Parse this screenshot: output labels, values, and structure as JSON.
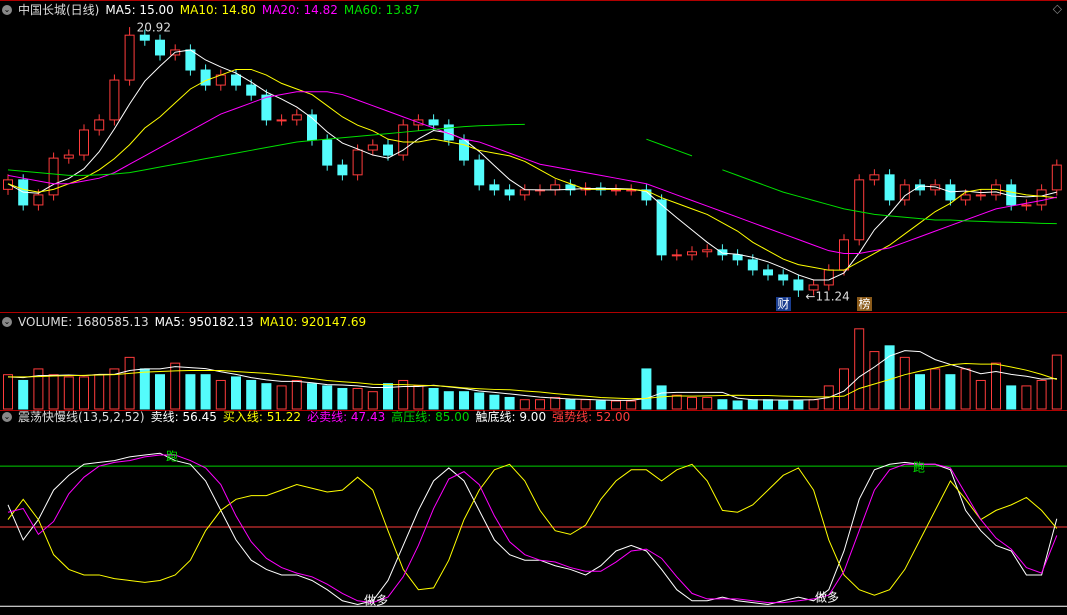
{
  "chart_data": [
    {
      "type": "candlestick",
      "title": "中国长城(日线)",
      "open": [
        15.1,
        15.44,
        14.54,
        14.9,
        16.22,
        16.33,
        17.23,
        17.59,
        19.02,
        20.63,
        20.45,
        19.92,
        20.1,
        19.38,
        18.84,
        19.2,
        18.84,
        18.48,
        17.59,
        17.59,
        17.77,
        16.87,
        15.97,
        15.62,
        16.51,
        16.69,
        16.33,
        17.41,
        17.59,
        17.41,
        16.87,
        16.15,
        15.26,
        15.08,
        14.9,
        15.08,
        15.08,
        15.26,
        15.08,
        15.15,
        15.08,
        15.08,
        15.08,
        14.72,
        12.75,
        12.75,
        12.86,
        12.93,
        12.75,
        12.57,
        12.21,
        12.03,
        11.85,
        11.49,
        11.67,
        12.21,
        13.29,
        15.44,
        15.62,
        14.72,
        15.26,
        15.08,
        15.26,
        14.72,
        14.9,
        14.9,
        15.26,
        14.54,
        14.54,
        15.08
      ],
      "high": [
        15.64,
        15.64,
        15.1,
        16.42,
        16.53,
        17.43,
        17.79,
        19.22,
        20.92,
        20.83,
        20.65,
        20.3,
        20.3,
        19.58,
        19.4,
        19.4,
        19.04,
        18.68,
        17.79,
        17.97,
        17.97,
        17.07,
        16.17,
        16.71,
        16.89,
        16.89,
        17.61,
        17.79,
        17.79,
        17.61,
        17.07,
        16.35,
        15.46,
        15.28,
        15.28,
        15.28,
        15.46,
        15.46,
        15.35,
        15.35,
        15.28,
        15.28,
        15.28,
        14.92,
        12.95,
        13.06,
        13.13,
        13.13,
        12.95,
        12.77,
        12.41,
        12.23,
        12.05,
        11.87,
        12.41,
        13.49,
        15.64,
        15.82,
        15.82,
        15.46,
        15.46,
        15.46,
        15.46,
        15.1,
        15.1,
        15.46,
        15.46,
        14.74,
        15.28,
        16.17
      ],
      "low": [
        14.9,
        14.34,
        14.34,
        14.7,
        16.02,
        16.13,
        17.03,
        17.39,
        18.82,
        20.25,
        19.72,
        19.72,
        19.18,
        18.64,
        18.64,
        18.64,
        18.28,
        17.39,
        17.39,
        17.39,
        16.67,
        15.77,
        15.42,
        15.42,
        16.31,
        16.13,
        16.13,
        17.21,
        17.21,
        16.67,
        15.95,
        15.06,
        14.88,
        14.7,
        14.7,
        14.88,
        14.88,
        14.88,
        14.88,
        14.88,
        14.88,
        14.88,
        14.52,
        12.55,
        12.55,
        12.55,
        12.66,
        12.55,
        12.37,
        12.01,
        11.83,
        11.65,
        11.24,
        11.29,
        11.47,
        12.01,
        13.09,
        15.24,
        14.52,
        14.52,
        14.88,
        14.88,
        14.52,
        14.52,
        14.7,
        14.7,
        14.34,
        14.34,
        14.34,
        14.88
      ],
      "close": [
        15.44,
        14.54,
        14.9,
        16.22,
        16.33,
        17.23,
        17.59,
        19.02,
        20.63,
        20.45,
        19.92,
        20.1,
        19.38,
        18.84,
        19.2,
        18.84,
        18.48,
        17.59,
        17.59,
        17.77,
        16.87,
        15.97,
        15.62,
        16.51,
        16.69,
        16.33,
        17.41,
        17.59,
        17.41,
        16.87,
        16.15,
        15.26,
        15.08,
        14.9,
        15.08,
        15.08,
        15.26,
        15.08,
        15.15,
        15.08,
        15.08,
        15.08,
        14.72,
        12.75,
        12.75,
        12.86,
        12.93,
        12.75,
        12.57,
        12.21,
        12.03,
        11.85,
        11.49,
        11.67,
        12.21,
        13.29,
        15.44,
        15.62,
        14.72,
        15.26,
        15.08,
        15.26,
        14.72,
        14.9,
        14.9,
        15.26,
        14.54,
        14.54,
        15.08,
        15.97
      ],
      "up_color": "#ff3c3c",
      "down_color": "#54fcfc",
      "ylim": [
        10.7,
        21.82
      ],
      "series": [
        {
          "label": "MA5: 15.00",
          "color": "#ffffff",
          "values": [
            15.3,
            15.0,
            14.96,
            15.28,
            15.49,
            15.84,
            16.45,
            17.27,
            18.16,
            18.98,
            19.52,
            20.02,
            20.1,
            19.74,
            19.49,
            19.27,
            18.95,
            18.59,
            18.34,
            18.05,
            17.66,
            17.16,
            16.76,
            16.55,
            16.33,
            16.22,
            16.51,
            16.91,
            17.21,
            17.12,
            16.89,
            16.46,
            15.95,
            15.45,
            15.09,
            15.08,
            15.08,
            15.1,
            15.13,
            15.13,
            15.13,
            15.11,
            15.02,
            14.54,
            14.08,
            13.64,
            13.2,
            12.81,
            12.77,
            12.66,
            12.5,
            12.28,
            12.03,
            11.85,
            11.85,
            12.1,
            12.82,
            13.65,
            14.22,
            14.87,
            15.22,
            15.19,
            15.01,
            15.04,
            14.98,
            15.01,
            14.86,
            14.83,
            14.86,
            15.0
          ]
        },
        {
          "label": "MA10: 14.80",
          "color": "#ffff00",
          "values": [
            15.3,
            15.1,
            15.0,
            15.1,
            15.3,
            15.5,
            15.8,
            16.2,
            16.7,
            17.3,
            17.7,
            18.2,
            18.7,
            19.0,
            19.2,
            19.4,
            19.4,
            19.2,
            18.9,
            18.7,
            18.5,
            18.1,
            17.7,
            17.4,
            17.2,
            16.9,
            16.8,
            16.8,
            16.9,
            16.8,
            16.7,
            16.5,
            16.4,
            16.3,
            16.1,
            15.8,
            15.5,
            15.3,
            15.1,
            15.1,
            15.1,
            15.1,
            15.05,
            14.8,
            14.6,
            14.4,
            14.2,
            13.9,
            13.6,
            13.2,
            12.9,
            12.6,
            12.4,
            12.3,
            12.2,
            12.2,
            12.5,
            12.8,
            13.1,
            13.5,
            13.9,
            14.3,
            14.6,
            15.0,
            15.1,
            15.1,
            15.0,
            14.9,
            14.85,
            14.8
          ]
        },
        {
          "label": "MA20: 14.82",
          "color": "#ff00ff",
          "values": [
            15.6,
            15.5,
            15.4,
            15.3,
            15.3,
            15.4,
            15.5,
            15.7,
            16.0,
            16.3,
            16.6,
            16.9,
            17.2,
            17.5,
            17.8,
            18.0,
            18.2,
            18.4,
            18.5,
            18.6,
            18.6,
            18.6,
            18.5,
            18.3,
            18.1,
            17.9,
            17.7,
            17.5,
            17.3,
            17.1,
            16.9,
            16.8,
            16.6,
            16.4,
            16.2,
            16.0,
            15.9,
            15.8,
            15.7,
            15.6,
            15.5,
            15.4,
            15.3,
            15.1,
            14.9,
            14.7,
            14.5,
            14.3,
            14.1,
            13.9,
            13.7,
            13.5,
            13.3,
            13.1,
            12.9,
            12.8,
            12.8,
            12.9,
            13.0,
            13.2,
            13.4,
            13.6,
            13.8,
            14.0,
            14.2,
            14.4,
            14.5,
            14.6,
            14.7,
            14.82
          ]
        },
        {
          "label": "MA60: 13.87",
          "color": "#00e000",
          "values": [
            15.8,
            15.75,
            15.7,
            15.65,
            15.6,
            15.6,
            15.62,
            15.65,
            15.7,
            15.8,
            15.9,
            16.0,
            16.1,
            16.2,
            16.3,
            16.4,
            16.5,
            16.6,
            16.7,
            16.8,
            16.85,
            16.9,
            16.95,
            17.0,
            17.05,
            17.1,
            17.15,
            17.2,
            17.25,
            17.3,
            17.35,
            17.38,
            17.4,
            17.42,
            17.43,
            null,
            null,
            null,
            null,
            null,
            null,
            null,
            16.9,
            16.7,
            16.5,
            16.3,
            null,
            15.8,
            15.6,
            15.4,
            15.2,
            15.0,
            14.85,
            14.7,
            14.55,
            14.4,
            14.3,
            14.2,
            14.15,
            14.1,
            14.05,
            14.0,
            14.0,
            13.97,
            13.95,
            13.93,
            13.92,
            13.9,
            13.88,
            13.87
          ]
        }
      ],
      "annotations": [
        {
          "text": "20.92",
          "value": 20.92,
          "side": "high"
        },
        {
          "text": "←11.24",
          "value": 11.24,
          "side": "low"
        }
      ],
      "markers": [
        "财",
        "榜"
      ]
    },
    {
      "type": "bar",
      "title": "VOLUME: 1680585.13",
      "values": [
        1070000,
        890000,
        1250000,
        1070000,
        1000000,
        1000000,
        1070000,
        1250000,
        1610000,
        1250000,
        1070000,
        1430000,
        1070000,
        1070000,
        890000,
        1000000,
        890000,
        790000,
        720000,
        890000,
        790000,
        720000,
        640000,
        640000,
        540000,
        790000,
        890000,
        720000,
        640000,
        540000,
        540000,
        500000,
        430000,
        360000,
        290000,
        290000,
        360000,
        290000,
        290000,
        250000,
        250000,
        250000,
        1250000,
        720000,
        430000,
        360000,
        360000,
        290000,
        250000,
        290000,
        290000,
        250000,
        250000,
        290000,
        720000,
        1250000,
        2500000,
        1790000,
        1970000,
        1610000,
        1070000,
        1250000,
        1070000,
        1250000,
        890000,
        1430000,
        720000,
        720000,
        890000,
        1680585.13
      ],
      "ylim": [
        0,
        2900000
      ],
      "series": [
        {
          "label": "MA5: 950182.13",
          "color": "#ffffff",
          "values": [
            1000000,
            980000,
            1040000,
            1050000,
            1060000,
            1040000,
            1080000,
            1080000,
            1200000,
            1250000,
            1250000,
            1320000,
            1290000,
            1260000,
            1160000,
            1080000,
            980000,
            910000,
            860000,
            860000,
            820000,
            760000,
            750000,
            720000,
            670000,
            670000,
            700000,
            700000,
            740000,
            690000,
            640000,
            560000,
            520000,
            470000,
            420000,
            370000,
            340000,
            310000,
            300000,
            280000,
            270000,
            270000,
            330000,
            500000,
            520000,
            520000,
            520000,
            520000,
            340000,
            290000,
            280000,
            280000,
            280000,
            290000,
            360000,
            560000,
            1000000,
            1310000,
            1650000,
            1820000,
            1790000,
            1540000,
            1390000,
            1250000,
            1100000,
            1170000,
            1080000,
            1020000,
            930000,
            950182.13
          ]
        },
        {
          "label": "MA10: 920147.69",
          "color": "#ffff00",
          "values": [
            1000000,
            1000000,
            1010000,
            1030000,
            1040000,
            1050000,
            1060000,
            1070000,
            1110000,
            1150000,
            1170000,
            1190000,
            1200000,
            1200000,
            1200000,
            1170000,
            1140000,
            1110000,
            1060000,
            1010000,
            950000,
            890000,
            850000,
            820000,
            770000,
            760000,
            760000,
            740000,
            730000,
            700000,
            660000,
            630000,
            610000,
            600000,
            560000,
            530000,
            480000,
            440000,
            400000,
            360000,
            340000,
            320000,
            330000,
            380000,
            410000,
            400000,
            410000,
            420000,
            430000,
            420000,
            420000,
            400000,
            390000,
            380000,
            380000,
            400000,
            640000,
            780000,
            920000,
            1070000,
            1180000,
            1280000,
            1380000,
            1420000,
            1400000,
            1400000,
            1310000,
            1210000,
            1080000,
            920147.69
          ]
        }
      ]
    },
    {
      "type": "line",
      "title": "震荡快慢线(13,5,2,52)",
      "ylim": [
        7,
        110
      ],
      "series": [
        {
          "label": "卖线: 56.45",
          "color": "#ffffff",
          "values": [
            64,
            45,
            56,
            72,
            80,
            86,
            87,
            88,
            90,
            91,
            92,
            88,
            86,
            77,
            61,
            45,
            34,
            29,
            26,
            26,
            23,
            18,
            12,
            10,
            12,
            23,
            42,
            61,
            77,
            84,
            77,
            61,
            45,
            37,
            34,
            34,
            31,
            29,
            26,
            31,
            39,
            42,
            39,
            29,
            18,
            12,
            12,
            14,
            12,
            11,
            10,
            12,
            14,
            12,
            18,
            39,
            67,
            83,
            86,
            87,
            86,
            86,
            83,
            61,
            50,
            42,
            39,
            26,
            26,
            56.45
          ]
        },
        {
          "label": "买入线: 51.22",
          "color": "#ffff00",
          "values": [
            56,
            67,
            56,
            37,
            29,
            26,
            26,
            24,
            23,
            22,
            23,
            26,
            34,
            50,
            61,
            67,
            69,
            69,
            72,
            75,
            73,
            71,
            72,
            79,
            72,
            50,
            29,
            18,
            19,
            34,
            56,
            72,
            83,
            86,
            77,
            61,
            50,
            48,
            53,
            67,
            77,
            83,
            83,
            77,
            83,
            86,
            77,
            61,
            60,
            64,
            72,
            80,
            84,
            72,
            45,
            26,
            18,
            15,
            18,
            29,
            45,
            61,
            77,
            67,
            56,
            61,
            64,
            68,
            61,
            51.22
          ]
        },
        {
          "label": "必卖线: 47.43",
          "color": "#ff00ff",
          "values": [
            60,
            62,
            48,
            55,
            70,
            79,
            85,
            87,
            88,
            90,
            91,
            91,
            88,
            84,
            75,
            58,
            44,
            35,
            30,
            27,
            25,
            21,
            16,
            12,
            11,
            14,
            25,
            42,
            62,
            78,
            82,
            75,
            58,
            44,
            37,
            34,
            33,
            30,
            28,
            28,
            33,
            39,
            40,
            35,
            25,
            16,
            13,
            13,
            13,
            12,
            11,
            11,
            12,
            13,
            15,
            28,
            50,
            72,
            83,
            86,
            86,
            86,
            84,
            70,
            56,
            46,
            40,
            30,
            27,
            47.43
          ]
        }
      ],
      "hlines": [
        {
          "label": "高压线: 85.00",
          "value": 85,
          "color": "#00d000"
        },
        {
          "label": "触底线: 9.00",
          "value": 9,
          "color": "#ffffff"
        },
        {
          "label": "强势线: 52.00",
          "value": 52,
          "color": "#ff3c3c"
        }
      ],
      "annotations": [
        "跑",
        "跑",
        "做多",
        "做多"
      ]
    }
  ]
}
